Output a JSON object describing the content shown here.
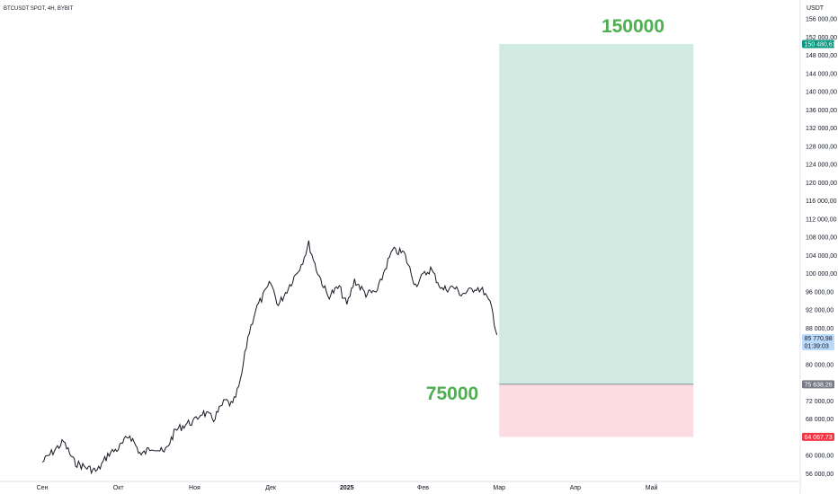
{
  "header": {
    "symbol_line": "BTCUSDT SPOT, 4H, BYBIT"
  },
  "price_scale": {
    "currency": "USDT"
  },
  "chart_data": {
    "type": "line",
    "title": "BTCUSDT SPOT, 4H, BYBIT",
    "xlabel": "",
    "ylabel": "",
    "ylim": [
      56000,
      158000
    ],
    "x_ticks": [
      "Сен",
      "Окт",
      "Ноя",
      "Дек",
      "2025",
      "Фев",
      "Мар",
      "Апр",
      "Май"
    ],
    "x_tick_bold": "2025",
    "y_ticks": [
      "156 000,00",
      "152 000,00",
      "148 000,00",
      "144 000,00",
      "140 000,00",
      "136 000,00",
      "132 000,00",
      "128 000,00",
      "124 000,00",
      "120 000,00",
      "116 000,00",
      "112 000,00",
      "108 000,00",
      "104 000,00",
      "100 000,00",
      "96 000,00",
      "92 000,00",
      "88 000,00",
      "80 000,00",
      "72 000,00",
      "68 000,00",
      "60 000,00",
      "56 000,00"
    ],
    "y_tick_values": [
      156000,
      152000,
      148000,
      144000,
      140000,
      136000,
      132000,
      128000,
      124000,
      120000,
      116000,
      112000,
      108000,
      104000,
      100000,
      96000,
      92000,
      88000,
      80000,
      72000,
      68000,
      60000,
      56000
    ],
    "series": [
      {
        "x_month_index": [
          0.0,
          0.12,
          0.28,
          0.42,
          0.55,
          0.72,
          0.88,
          1.0,
          1.15,
          1.3,
          1.45,
          1.6,
          1.75,
          1.9,
          2.0,
          2.1,
          2.25,
          2.4,
          2.5,
          2.6,
          2.7,
          2.8,
          2.9,
          3.0,
          3.1,
          3.25,
          3.4,
          3.5,
          3.6,
          3.75,
          3.9,
          4.0,
          4.1,
          4.25,
          4.4,
          4.5,
          4.6,
          4.75,
          4.9,
          5.0,
          5.1,
          5.25,
          5.4,
          5.5,
          5.6,
          5.7,
          5.8,
          5.9,
          5.97
        ],
        "values": [
          58500,
          60500,
          63000,
          58500,
          57500,
          56500,
          60500,
          61500,
          64500,
          60000,
          62000,
          60500,
          65500,
          67000,
          67500,
          69500,
          68000,
          72000,
          71000,
          76000,
          86000,
          92000,
          95000,
          98000,
          93000,
          97500,
          102000,
          106500,
          101000,
          95000,
          97000,
          93000,
          98500,
          95500,
          96000,
          101000,
          105000,
          104500,
          97500,
          99500,
          101000,
          96500,
          97000,
          95500,
          96000,
          97000,
          96000,
          92500,
          86500
        ],
        "name": ""
      }
    ],
    "annotations": {
      "target_label": "150000",
      "stop_label": "75000",
      "target_value": 150480,
      "entry_value": 75638,
      "stop_value": 64067,
      "zone_start_month_index": 6.0,
      "zone_end_month_index": 8.55
    },
    "price_badges": {
      "target": {
        "value": 150480.61,
        "text": "150 480,61",
        "color": "#089981"
      },
      "current": {
        "value": 85770.98,
        "text": "85 770,98",
        "subtext": "01:39:03",
        "color": "#bbd9fb"
      },
      "entry": {
        "value": 75638.26,
        "text": "75 638,26",
        "color": "#787b86"
      },
      "stop": {
        "value": 64067.73,
        "text": "64 067,73",
        "color": "#f23645"
      }
    },
    "colors": {
      "line": "#131722",
      "profit_zone": "#d1ebe3",
      "loss_zone": "#fcdce0",
      "label": "#4caf50",
      "axis_border": "#e0e3eb"
    }
  }
}
